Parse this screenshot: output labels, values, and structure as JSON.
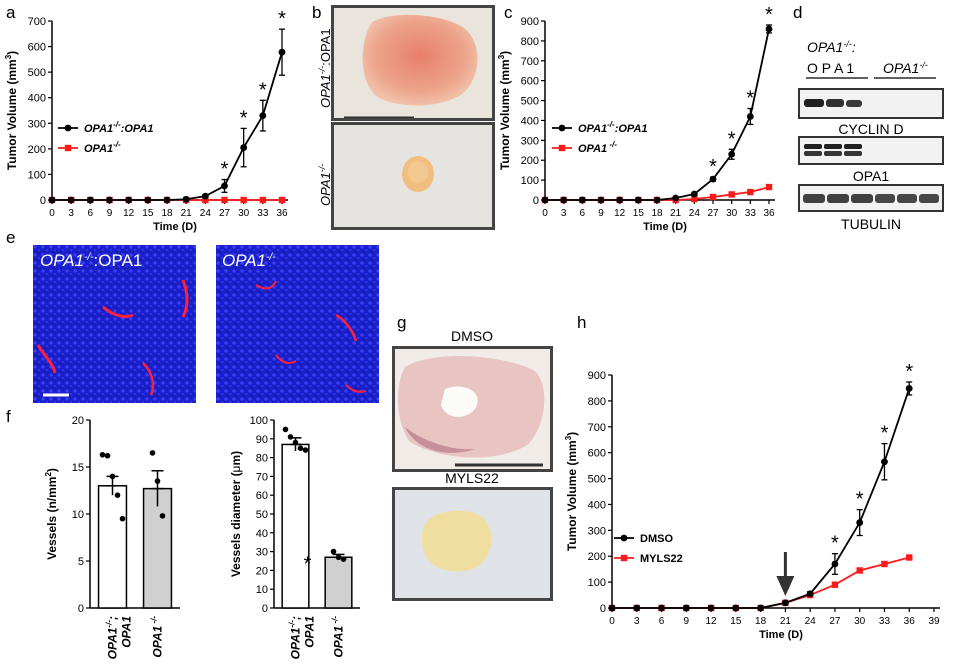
{
  "panel_letters": {
    "a": "a",
    "b": "b",
    "c": "c",
    "d": "d",
    "e": "e",
    "f": "f",
    "g": "g",
    "h": "h"
  },
  "colors": {
    "black": "#000000",
    "red": "#ff1a1a",
    "grey_bar": "#d0d0d0",
    "nuclei": "#2323ff",
    "vessel": "#ff1f3a"
  },
  "panel_b": {
    "top_label_genotype": "OPA1",
    "top_label_sup": "-/-",
    "top_label_rescue": ":OPA1",
    "bottom_label_genotype": "OPA1",
    "bottom_label_sup": "-/-"
  },
  "panel_d": {
    "header_line1": "OPA1",
    "header_line1_sup": "-/-",
    "header_line1_suffix": ":",
    "header_left": "O P A 1",
    "header_right": "OPA1",
    "header_right_sup": "-/-",
    "blot_labels": [
      "CYCLIN D",
      "OPA1",
      "TUBULIN"
    ]
  },
  "panel_e": {
    "left_label": "OPA1",
    "left_sup": "-/-",
    "left_suffix": ":OPA1",
    "right_label": "OPA1",
    "right_sup": "-/-"
  },
  "panel_g": {
    "top_label": "DMSO",
    "bottom_label": "MYLS22"
  },
  "chart_data": [
    {
      "id": "a",
      "type": "line",
      "xlabel": "Time (D)",
      "ylabel": "Tumor Volume (mm",
      "ylabel_sup": "3",
      "ylabel_end": ")",
      "xlim": [
        0,
        36
      ],
      "ylim": [
        0,
        700
      ],
      "xticks": [
        0,
        3,
        6,
        9,
        12,
        15,
        18,
        21,
        24,
        27,
        30,
        33,
        36
      ],
      "yticks": [
        0,
        100,
        200,
        300,
        400,
        500,
        600,
        700
      ],
      "x": [
        0,
        3,
        6,
        9,
        12,
        15,
        18,
        21,
        24,
        27,
        30,
        33,
        36
      ],
      "series": [
        {
          "name": "OPA1",
          "name_sup": "-/-",
          "name_suffix": ":OPA1",
          "color": "#000000",
          "values": [
            0,
            0,
            0,
            0,
            0,
            0,
            0,
            3,
            15,
            55,
            205,
            330,
            578
          ],
          "err": [
            0,
            0,
            0,
            0,
            0,
            0,
            0,
            2,
            6,
            25,
            75,
            60,
            90
          ]
        },
        {
          "name": "OPA1",
          "name_sup": "-/-",
          "name_suffix": "",
          "color": "#ff1a1a",
          "values": [
            0,
            0,
            0,
            0,
            0,
            0,
            0,
            0,
            0,
            0,
            0,
            0,
            0
          ],
          "err": [
            0,
            0,
            0,
            0,
            0,
            0,
            0,
            0,
            0,
            0,
            0,
            0,
            0
          ]
        }
      ],
      "significance_x": [
        27,
        30,
        33,
        36
      ],
      "significance_label": "*"
    },
    {
      "id": "c",
      "type": "line",
      "xlabel": "Time (D)",
      "ylabel": "Tumor Volume (mm",
      "ylabel_sup": "3",
      "ylabel_end": ")",
      "xlim": [
        0,
        36
      ],
      "ylim": [
        0,
        900
      ],
      "xticks": [
        0,
        3,
        6,
        9,
        12,
        15,
        18,
        21,
        24,
        27,
        30,
        33,
        36
      ],
      "yticks": [
        0,
        100,
        200,
        300,
        400,
        500,
        600,
        700,
        800,
        900
      ],
      "x": [
        0,
        3,
        6,
        9,
        12,
        15,
        18,
        21,
        24,
        27,
        30,
        33,
        36
      ],
      "series": [
        {
          "name": "OPA1",
          "name_sup": "-/-",
          "name_suffix": ":OPA1",
          "color": "#000000",
          "values": [
            0,
            0,
            0,
            0,
            0,
            0,
            0,
            10,
            30,
            105,
            230,
            420,
            860
          ],
          "err": [
            0,
            0,
            0,
            0,
            0,
            0,
            0,
            3,
            6,
            10,
            25,
            40,
            20
          ]
        },
        {
          "name": "OPA1",
          "name_sup": " -/-",
          "name_suffix": "",
          "color": "#ff1a1a",
          "values": [
            0,
            0,
            0,
            0,
            0,
            0,
            0,
            0,
            5,
            15,
            28,
            40,
            65
          ],
          "err": [
            0,
            0,
            0,
            0,
            0,
            0,
            0,
            0,
            2,
            3,
            4,
            4,
            6
          ]
        }
      ],
      "significance_x": [
        27,
        30,
        33,
        36
      ],
      "significance_label": "*"
    },
    {
      "id": "f1",
      "type": "bar",
      "ylabel": "Vessels (n/mm",
      "ylabel_sup": "2",
      "ylabel_end": ")",
      "ylim": [
        0,
        20
      ],
      "yticks": [
        0,
        5,
        10,
        15,
        20
      ],
      "categories": [
        {
          "line1": "OPA1",
          "sup": "-/-",
          "line1_suffix": ";",
          "line2": "OPA1"
        },
        {
          "line1": "OPA1",
          "sup": " -/-",
          "line1_suffix": "",
          "line2": ""
        }
      ],
      "values": [
        13.0,
        12.7
      ],
      "err": [
        1.0,
        1.9
      ],
      "fills": [
        "#ffffff",
        "#d0d0d0"
      ],
      "points": [
        [
          16.3,
          16.2,
          14.0,
          12.0,
          9.5
        ],
        [
          16.5,
          13.5,
          9.8
        ]
      ]
    },
    {
      "id": "f2",
      "type": "bar",
      "ylabel": "Vessels diameter (",
      "ylabel_mu": "μ",
      "ylabel_end": "m)",
      "ylim": [
        0,
        100
      ],
      "yticks": [
        0,
        10,
        20,
        30,
        40,
        50,
        60,
        70,
        80,
        90,
        100
      ],
      "categories": [
        {
          "line1": "OPA1",
          "sup": "-/-",
          "line1_suffix": ";",
          "line2": "OPA1"
        },
        {
          "line1": "OPA1",
          "sup": " -/-",
          "line1_suffix": "",
          "line2": ""
        }
      ],
      "values": [
        87,
        27
      ],
      "err": [
        3.5,
        1.5
      ],
      "fills": [
        "#ffffff",
        "#d0d0d0"
      ],
      "points": [
        [
          95,
          91,
          88,
          85,
          84
        ],
        [
          30,
          27,
          26
        ]
      ],
      "significance_label": "*"
    },
    {
      "id": "h",
      "type": "line",
      "xlabel": "Time (D)",
      "ylabel": "Tumor Volume (mm",
      "ylabel_sup": "3",
      "ylabel_end": ")",
      "xlim": [
        0,
        39
      ],
      "ylim": [
        0,
        900
      ],
      "xticks": [
        0,
        3,
        6,
        9,
        12,
        15,
        18,
        21,
        24,
        27,
        30,
        33,
        36,
        39
      ],
      "yticks": [
        0,
        100,
        200,
        300,
        400,
        500,
        600,
        700,
        800,
        900
      ],
      "x": [
        0,
        3,
        6,
        9,
        12,
        15,
        18,
        21,
        24,
        27,
        30,
        33,
        36
      ],
      "series": [
        {
          "name": "DMSO",
          "color": "#000000",
          "values": [
            0,
            0,
            0,
            0,
            0,
            0,
            0,
            20,
            55,
            170,
            330,
            565,
            848
          ],
          "err": [
            0,
            0,
            0,
            0,
            0,
            0,
            0,
            3,
            8,
            40,
            50,
            70,
            25
          ]
        },
        {
          "name": "MYLS22",
          "color": "#ff1a1a",
          "values": [
            0,
            0,
            0,
            0,
            0,
            0,
            0,
            20,
            50,
            90,
            145,
            170,
            195
          ],
          "err": [
            0,
            0,
            0,
            0,
            0,
            0,
            0,
            3,
            5,
            8,
            8,
            8,
            8
          ]
        }
      ],
      "significance_x": [
        27,
        30,
        33,
        36
      ],
      "significance_label": "*",
      "arrow_x": 21
    }
  ]
}
